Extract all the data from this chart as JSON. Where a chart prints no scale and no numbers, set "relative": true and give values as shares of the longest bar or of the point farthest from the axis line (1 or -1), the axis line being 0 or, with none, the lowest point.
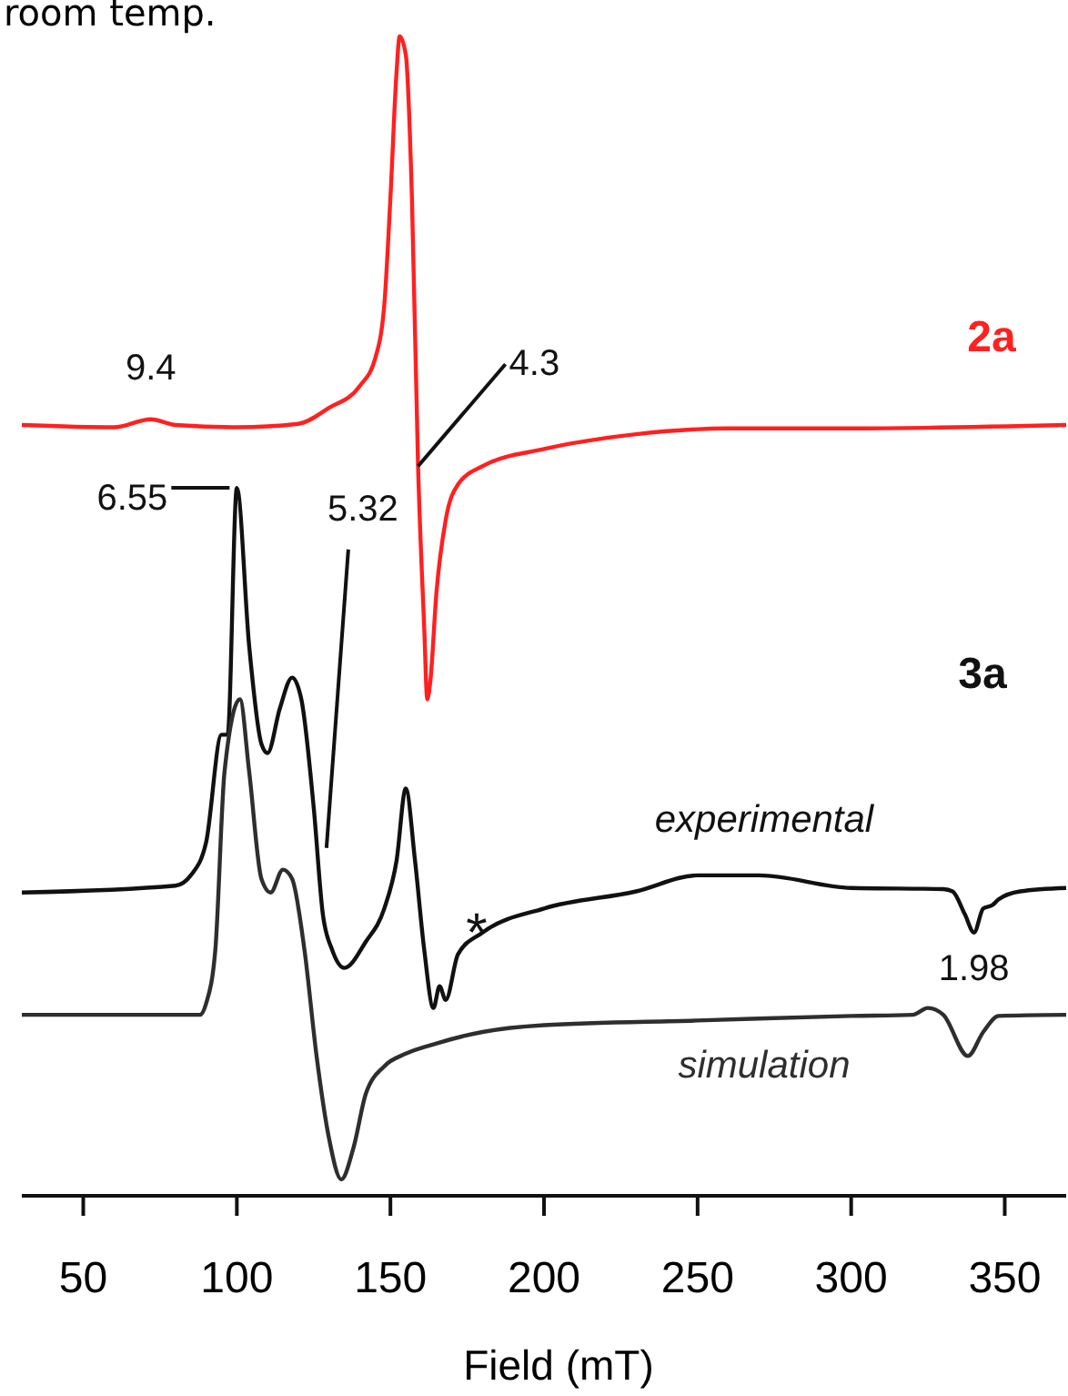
{
  "chart_data": {
    "type": "line",
    "relative": true,
    "title": "room temp.",
    "xlabel": "Field (mT)",
    "xlim": [
      30,
      370
    ],
    "xticks": [
      50,
      100,
      150,
      200,
      250,
      300,
      350
    ],
    "line_style": "solid",
    "marker": "none",
    "legend": false,
    "grid": false,
    "series": [
      {
        "name": "2a",
        "color": "#ff2020",
        "x": [
          30,
          60,
          72,
          80,
          100,
          120,
          130,
          140,
          145,
          148,
          150,
          152,
          153,
          155,
          157,
          159,
          161,
          162,
          163,
          165,
          168,
          172,
          180,
          200,
          230,
          260,
          300,
          370
        ],
        "values": [
          0.66,
          0.658,
          0.665,
          0.66,
          0.658,
          0.661,
          0.675,
          0.694,
          0.718,
          0.765,
          0.859,
          0.969,
          1.0,
          0.984,
          0.859,
          0.624,
          0.483,
          0.42,
          0.436,
          0.514,
          0.577,
          0.608,
          0.624,
          0.639,
          0.652,
          0.657,
          0.657,
          0.66
        ]
      },
      {
        "name": "experimental",
        "color": "#111111",
        "x": [
          30,
          80,
          85,
          90,
          95,
          97,
          100,
          104,
          108,
          110,
          114,
          118,
          121,
          125,
          128,
          131,
          135,
          142,
          148,
          152,
          155,
          158,
          161,
          164,
          166,
          168,
          172,
          180,
          200,
          230,
          250,
          270,
          300,
          330,
          333,
          337,
          340,
          343,
          346,
          348,
          355,
          370
        ],
        "values": [
          0.251,
          0.257,
          0.266,
          0.295,
          0.389,
          0.389,
          0.605,
          0.467,
          0.381,
          0.373,
          0.412,
          0.439,
          0.42,
          0.326,
          0.232,
          0.201,
          0.185,
          0.208,
          0.237,
          0.279,
          0.342,
          0.279,
          0.201,
          0.15,
          0.169,
          0.157,
          0.197,
          0.216,
          0.237,
          0.252,
          0.266,
          0.266,
          0.255,
          0.254,
          0.252,
          0.232,
          0.216,
          0.237,
          0.24,
          0.245,
          0.252,
          0.255
        ]
      },
      {
        "name": "simulation",
        "color": "#2e2e2e",
        "x": [
          30,
          88,
          90,
          93,
          96,
          101,
          104,
          108,
          111,
          115,
          118,
          122,
          126,
          130,
          134,
          138,
          142,
          148,
          155,
          165,
          180,
          200,
          250,
          300,
          320,
          325,
          330,
          338,
          343,
          348,
          370
        ],
        "values": [
          0.144,
          0.144,
          0.154,
          0.201,
          0.357,
          0.42,
          0.357,
          0.263,
          0.251,
          0.271,
          0.263,
          0.201,
          0.107,
          0.036,
          0,
          0.028,
          0.075,
          0.099,
          0.11,
          0.119,
          0.129,
          0.135,
          0.139,
          0.143,
          0.144,
          0.15,
          0.144,
          0.108,
          0.129,
          0.143,
          0.144
        ]
      }
    ],
    "annotations": [
      {
        "text": "9.4",
        "x": 72,
        "y": 0.665
      },
      {
        "text": "4.3",
        "x": 159,
        "y": 0.624
      },
      {
        "text": "6.55",
        "x": 100,
        "y": 0.605
      },
      {
        "text": "5.32",
        "x": 128,
        "y": 0.29
      },
      "3a",
      {
        "text": "*",
        "x": 165,
        "y": 0.16
      },
      {
        "text": "1.98",
        "x": 340,
        "y": 0.216
      }
    ]
  }
}
